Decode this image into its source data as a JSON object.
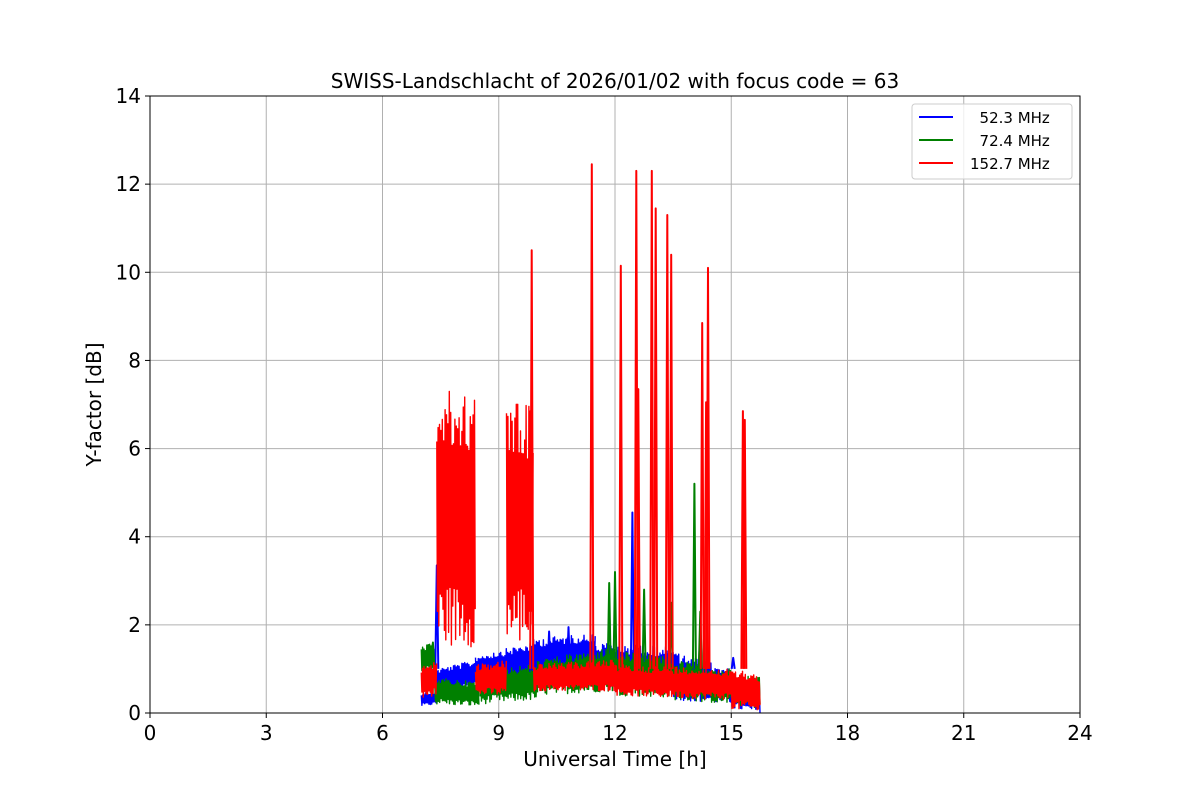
{
  "chart_data": {
    "type": "line",
    "title": "SWISS-Landschlacht of 2026/01/02 with focus code = 63",
    "xlabel": "Universal Time [h]",
    "ylabel": "Y-factor [dB]",
    "xlim": [
      0,
      24
    ],
    "ylim": [
      0,
      14
    ],
    "xticks": [
      0,
      3,
      6,
      9,
      12,
      15,
      18,
      21,
      24
    ],
    "yticks": [
      0,
      2,
      4,
      6,
      8,
      10,
      12,
      14
    ],
    "xtick_labels": [
      "0",
      "3",
      "6",
      "9",
      "12",
      "15",
      "18",
      "21",
      "24"
    ],
    "ytick_labels": [
      "0",
      "2",
      "4",
      "6",
      "8",
      "10",
      "12",
      "14"
    ],
    "grid": true,
    "legend_position": "top-right",
    "series": [
      {
        "name": "52.3 MHz",
        "legend_label": "  52.3 MHz",
        "color": "#0000ff",
        "bands": [
          {
            "x": [
              7.0,
              7.4
            ],
            "lo": [
              0.15,
              0.2
            ],
            "hi": [
              0.45,
              0.5
            ]
          },
          {
            "x": [
              7.4,
              8.4
            ],
            "lo": [
              0.5,
              0.6
            ],
            "hi": [
              1.0,
              1.2
            ]
          },
          {
            "x": [
              8.4,
              9.9
            ],
            "lo": [
              0.7,
              0.8
            ],
            "hi": [
              1.3,
              1.6
            ]
          },
          {
            "x": [
              9.9,
              11.5
            ],
            "lo": [
              0.8,
              1.0
            ],
            "hi": [
              1.7,
              1.8
            ]
          },
          {
            "x": [
              11.5,
              13.5
            ],
            "lo": [
              0.6,
              0.5
            ],
            "hi": [
              1.6,
              1.5
            ]
          },
          {
            "x": [
              13.5,
              15.0
            ],
            "lo": [
              0.3,
              0.2
            ],
            "hi": [
              1.4,
              1.0
            ]
          },
          {
            "x": [
              15.0,
              15.75
            ],
            "lo": [
              0.1,
              0.0
            ],
            "hi": [
              0.8,
              0.6
            ]
          }
        ],
        "spikes": [
          {
            "x": 7.4,
            "y": 3.35
          },
          {
            "x": 10.3,
            "y": 1.85
          },
          {
            "x": 10.8,
            "y": 1.95
          },
          {
            "x": 12.45,
            "y": 4.55
          },
          {
            "x": 14.2,
            "y": 1.9
          },
          {
            "x": 15.05,
            "y": 1.25
          }
        ]
      },
      {
        "name": "72.4 MHz",
        "legend_label": "  72.4 MHz",
        "color": "#008000",
        "bands": [
          {
            "x": [
              7.0,
              7.35
            ],
            "lo": [
              0.9,
              1.0
            ],
            "hi": [
              1.5,
              1.6
            ]
          },
          {
            "x": [
              7.35,
              8.5
            ],
            "lo": [
              0.2,
              0.15
            ],
            "hi": [
              0.8,
              0.7
            ]
          },
          {
            "x": [
              8.5,
              10.0
            ],
            "lo": [
              0.2,
              0.3
            ],
            "hi": [
              1.0,
              1.1
            ]
          },
          {
            "x": [
              10.0,
              12.0
            ],
            "lo": [
              0.4,
              0.5
            ],
            "hi": [
              1.2,
              1.5
            ]
          },
          {
            "x": [
              12.0,
              13.5
            ],
            "lo": [
              0.4,
              0.35
            ],
            "hi": [
              1.4,
              1.3
            ]
          },
          {
            "x": [
              13.5,
              15.0
            ],
            "lo": [
              0.3,
              0.2
            ],
            "hi": [
              1.2,
              1.0
            ]
          },
          {
            "x": [
              15.0,
              15.75
            ],
            "lo": [
              0.2,
              0.1
            ],
            "hi": [
              0.9,
              0.8
            ]
          }
        ],
        "spikes": [
          {
            "x": 7.3,
            "y": 1.6
          },
          {
            "x": 11.85,
            "y": 2.95
          },
          {
            "x": 12.0,
            "y": 3.2
          },
          {
            "x": 12.75,
            "y": 2.8
          },
          {
            "x": 13.45,
            "y": 2.5
          },
          {
            "x": 14.05,
            "y": 5.2
          },
          {
            "x": 14.2,
            "y": 2.3
          }
        ]
      },
      {
        "name": "152.7 MHz",
        "legend_label": "152.7 MHz",
        "color": "#ff0000",
        "bands": [
          {
            "x": [
              7.0,
              7.4
            ],
            "lo": [
              0.3,
              0.4
            ],
            "hi": [
              1.1,
              1.2
            ]
          },
          {
            "x": [
              7.4,
              8.4
            ],
            "lo": [
              1.5,
              1.5
            ],
            "hi": [
              7.3,
              7.3
            ]
          },
          {
            "x": [
              8.4,
              9.2
            ],
            "lo": [
              0.4,
              0.4
            ],
            "hi": [
              1.1,
              1.2
            ]
          },
          {
            "x": [
              9.2,
              9.9
            ],
            "lo": [
              1.5,
              1.6
            ],
            "hi": [
              7.4,
              7.0
            ]
          },
          {
            "x": [
              9.9,
              12.0
            ],
            "lo": [
              0.5,
              0.5
            ],
            "hi": [
              1.1,
              1.2
            ]
          },
          {
            "x": [
              12.0,
              15.0
            ],
            "lo": [
              0.4,
              0.3
            ],
            "hi": [
              1.1,
              1.0
            ]
          },
          {
            "x": [
              15.0,
              15.75
            ],
            "lo": [
              0.1,
              0.0
            ],
            "hi": [
              1.0,
              0.9
            ]
          }
        ],
        "spikes": [
          {
            "x": 9.85,
            "y": 10.5
          },
          {
            "x": 11.4,
            "y": 12.45
          },
          {
            "x": 12.15,
            "y": 10.15
          },
          {
            "x": 12.55,
            "y": 12.3
          },
          {
            "x": 12.6,
            "y": 7.35
          },
          {
            "x": 12.95,
            "y": 12.3
          },
          {
            "x": 13.05,
            "y": 11.45
          },
          {
            "x": 13.35,
            "y": 11.3
          },
          {
            "x": 13.45,
            "y": 10.4
          },
          {
            "x": 14.25,
            "y": 8.85
          },
          {
            "x": 14.35,
            "y": 7.05
          },
          {
            "x": 14.4,
            "y": 10.1
          },
          {
            "x": 15.3,
            "y": 6.85
          },
          {
            "x": 15.35,
            "y": 6.65
          }
        ]
      }
    ]
  }
}
